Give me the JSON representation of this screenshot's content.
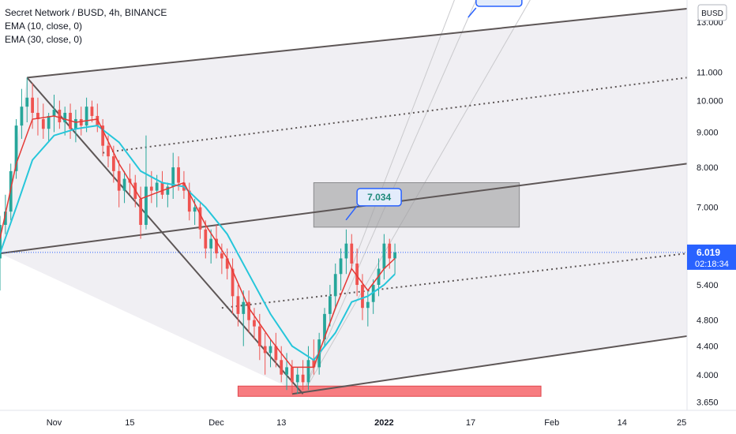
{
  "header": {
    "title": "Secret Network / BUSD, 4h, BINANCE",
    "indicators": [
      "EMA (10, close, 0)",
      "EMA (30, close, 0)"
    ]
  },
  "price_axis": {
    "currency_badge": "BUSD",
    "last_price": "6.019",
    "countdown": "02:18:34"
  },
  "annotations": {
    "target_mid": "7.034"
  },
  "colors": {
    "up": "#26a69a",
    "down": "#ef5350",
    "ema_fast": "#e53935",
    "ema_slow": "#26c6da",
    "channel": "#5d5656",
    "last_price": "#2962ff",
    "box_grey": "#9e9ea0",
    "box_red": "#f77c80"
  },
  "chart_data": {
    "type": "candlestick",
    "yscale": "log",
    "y_ticks": [
      "3.650",
      "4.000",
      "4.400",
      "4.800",
      "5.400",
      "6.000",
      "7.000",
      "8.000",
      "9.000",
      "10.000",
      "11.000",
      "13.000"
    ],
    "x_ticks": [
      "Nov",
      "15",
      "Dec",
      "13",
      "2022",
      "17",
      "Feb",
      "14",
      "25"
    ],
    "ylim": [
      3.55,
      14.0
    ],
    "xlim": [
      "2021-10-22",
      "2022-02-26"
    ],
    "series": [
      {
        "name": "EMA (10, close, 0)",
        "kind": "line"
      },
      {
        "name": "EMA (30, close, 0)",
        "kind": "line"
      }
    ],
    "candles": [
      [
        "2021-10-22",
        5.9,
        6.8,
        5.3,
        6.6
      ],
      [
        "2021-10-23",
        6.6,
        7.3,
        6.4,
        6.9
      ],
      [
        "2021-10-24",
        6.9,
        8.1,
        6.7,
        7.9
      ],
      [
        "2021-10-25",
        7.9,
        9.4,
        7.7,
        9.2
      ],
      [
        "2021-10-26",
        9.2,
        10.4,
        8.8,
        9.8
      ],
      [
        "2021-10-27",
        9.8,
        10.8,
        9.3,
        10.1
      ],
      [
        "2021-10-28",
        10.1,
        10.6,
        9.1,
        9.6
      ],
      [
        "2021-10-29",
        9.6,
        10.1,
        8.9,
        9.4
      ],
      [
        "2021-10-30",
        9.4,
        9.9,
        8.8,
        9.1
      ],
      [
        "2021-10-31",
        9.1,
        9.6,
        8.7,
        9.5
      ],
      [
        "2021-11-01",
        9.5,
        10.2,
        9.0,
        9.7
      ],
      [
        "2021-11-02",
        9.7,
        10.0,
        9.1,
        9.3
      ],
      [
        "2021-11-03",
        9.3,
        9.8,
        8.9,
        9.6
      ],
      [
        "2021-11-04",
        9.6,
        9.9,
        8.8,
        9.1
      ],
      [
        "2021-11-05",
        9.1,
        9.7,
        8.7,
        9.4
      ],
      [
        "2021-11-06",
        9.4,
        9.8,
        8.9,
        9.2
      ],
      [
        "2021-11-07",
        9.2,
        10.1,
        9.0,
        9.8
      ],
      [
        "2021-11-08",
        9.8,
        10.0,
        9.3,
        9.5
      ],
      [
        "2021-11-09",
        9.5,
        9.9,
        9.0,
        9.2
      ],
      [
        "2021-11-10",
        9.2,
        9.4,
        8.3,
        8.6
      ],
      [
        "2021-11-11",
        8.6,
        8.9,
        8.0,
        8.3
      ],
      [
        "2021-11-12",
        8.3,
        8.6,
        7.6,
        7.9
      ],
      [
        "2021-11-13",
        7.9,
        8.2,
        7.0,
        7.4
      ],
      [
        "2021-11-14",
        7.4,
        7.9,
        7.1,
        7.7
      ],
      [
        "2021-11-15",
        7.7,
        8.1,
        7.3,
        7.6
      ],
      [
        "2021-11-16",
        7.6,
        7.8,
        7.0,
        7.2
      ],
      [
        "2021-11-17",
        7.2,
        7.5,
        6.3,
        6.6
      ],
      [
        "2021-11-18",
        6.6,
        8.9,
        6.5,
        7.5
      ],
      [
        "2021-11-19",
        7.5,
        7.9,
        7.1,
        7.4
      ],
      [
        "2021-11-20",
        7.4,
        7.8,
        7.0,
        7.6
      ],
      [
        "2021-11-21",
        7.6,
        7.9,
        7.2,
        7.3
      ],
      [
        "2021-11-22",
        7.3,
        7.6,
        7.0,
        7.5
      ],
      [
        "2021-11-23",
        7.5,
        8.4,
        7.2,
        8.0
      ],
      [
        "2021-11-24",
        8.0,
        8.3,
        7.4,
        7.6
      ],
      [
        "2021-11-25",
        7.6,
        7.9,
        7.2,
        7.4
      ],
      [
        "2021-11-26",
        7.4,
        7.6,
        6.7,
        6.9
      ],
      [
        "2021-11-27",
        6.9,
        7.2,
        6.6,
        7.0
      ],
      [
        "2021-11-28",
        7.0,
        7.1,
        6.3,
        6.5
      ],
      [
        "2021-11-29",
        6.5,
        6.7,
        5.9,
        6.1
      ],
      [
        "2021-11-30",
        6.1,
        6.5,
        5.8,
        6.3
      ],
      [
        "2021-12-01",
        6.3,
        6.6,
        5.9,
        6.0
      ],
      [
        "2021-12-02",
        6.0,
        6.2,
        5.6,
        5.9
      ],
      [
        "2021-12-03",
        5.9,
        6.1,
        5.5,
        5.7
      ],
      [
        "2021-12-04",
        5.7,
        5.9,
        4.9,
        5.2
      ],
      [
        "2021-12-05",
        5.2,
        5.4,
        4.7,
        4.9
      ],
      [
        "2021-12-06",
        4.9,
        5.3,
        4.4,
        5.1
      ],
      [
        "2021-12-07",
        5.1,
        5.3,
        4.6,
        4.8
      ],
      [
        "2021-12-08",
        4.8,
        5.0,
        4.5,
        4.7
      ],
      [
        "2021-12-09",
        4.7,
        4.9,
        4.2,
        4.4
      ],
      [
        "2021-12-10",
        4.4,
        4.6,
        4.0,
        4.3
      ],
      [
        "2021-12-11",
        4.3,
        4.5,
        4.1,
        4.4
      ],
      [
        "2021-12-12",
        4.4,
        4.6,
        4.1,
        4.2
      ],
      [
        "2021-12-13",
        4.2,
        4.4,
        3.9,
        4.0
      ],
      [
        "2021-12-14",
        4.0,
        4.3,
        3.8,
        4.1
      ],
      [
        "2021-12-15",
        4.1,
        4.2,
        3.75,
        3.9
      ],
      [
        "2021-12-16",
        3.9,
        4.1,
        3.75,
        4.0
      ],
      [
        "2021-12-17",
        4.0,
        4.2,
        3.8,
        3.9
      ],
      [
        "2021-12-18",
        3.9,
        4.4,
        3.8,
        4.2
      ],
      [
        "2021-12-19",
        4.2,
        4.5,
        4.0,
        4.1
      ],
      [
        "2021-12-20",
        4.1,
        4.6,
        4.0,
        4.5
      ],
      [
        "2021-12-21",
        4.5,
        5.0,
        4.4,
        4.9
      ],
      [
        "2021-12-22",
        4.9,
        5.4,
        4.7,
        5.2
      ],
      [
        "2021-12-23",
        5.2,
        5.8,
        5.0,
        5.6
      ],
      [
        "2021-12-24",
        5.6,
        6.1,
        5.3,
        5.9
      ],
      [
        "2021-12-25",
        5.9,
        6.5,
        5.6,
        6.2
      ],
      [
        "2021-12-26",
        6.2,
        6.4,
        5.7,
        5.8
      ],
      [
        "2021-12-27",
        5.8,
        6.1,
        5.2,
        5.4
      ],
      [
        "2021-12-28",
        5.4,
        5.6,
        4.8,
        5.0
      ],
      [
        "2021-12-29",
        5.0,
        5.3,
        4.7,
        5.1
      ],
      [
        "2021-12-30",
        5.1,
        5.5,
        4.9,
        5.4
      ],
      [
        "2021-12-31",
        5.4,
        5.9,
        5.2,
        5.7
      ],
      [
        "2022-01-01",
        5.7,
        6.4,
        5.5,
        6.2
      ],
      [
        "2022-01-02",
        6.2,
        6.3,
        5.7,
        5.9
      ],
      [
        "2022-01-03",
        5.9,
        6.2,
        5.6,
        6.019
      ]
    ],
    "ema_fast": [
      [
        "2021-10-22",
        6.3
      ],
      [
        "2021-10-25",
        8.1
      ],
      [
        "2021-10-28",
        9.4
      ],
      [
        "2021-11-01",
        9.5
      ],
      [
        "2021-11-05",
        9.3
      ],
      [
        "2021-11-09",
        9.4
      ],
      [
        "2021-11-13",
        8.1
      ],
      [
        "2021-11-17",
        7.2
      ],
      [
        "2021-11-21",
        7.4
      ],
      [
        "2021-11-25",
        7.6
      ],
      [
        "2021-11-29",
        6.6
      ],
      [
        "2021-12-03",
        5.9
      ],
      [
        "2021-12-07",
        5.0
      ],
      [
        "2021-12-11",
        4.5
      ],
      [
        "2021-12-15",
        4.1
      ],
      [
        "2021-12-19",
        4.1
      ],
      [
        "2021-12-23",
        5.0
      ],
      [
        "2021-12-26",
        5.7
      ],
      [
        "2021-12-29",
        5.3
      ],
      [
        "2022-01-01",
        5.7
      ],
      [
        "2022-01-03",
        5.9
      ]
    ],
    "ema_slow": [
      [
        "2021-10-22",
        6.0
      ],
      [
        "2021-10-25",
        7.0
      ],
      [
        "2021-10-28",
        8.2
      ],
      [
        "2021-11-01",
        8.9
      ],
      [
        "2021-11-05",
        9.1
      ],
      [
        "2021-11-09",
        9.2
      ],
      [
        "2021-11-13",
        8.7
      ],
      [
        "2021-11-17",
        7.9
      ],
      [
        "2021-11-21",
        7.6
      ],
      [
        "2021-11-25",
        7.5
      ],
      [
        "2021-11-29",
        7.0
      ],
      [
        "2021-12-03",
        6.4
      ],
      [
        "2021-12-07",
        5.6
      ],
      [
        "2021-12-11",
        4.9
      ],
      [
        "2021-12-15",
        4.4
      ],
      [
        "2021-12-19",
        4.2
      ],
      [
        "2021-12-23",
        4.6
      ],
      [
        "2021-12-26",
        5.1
      ],
      [
        "2021-12-29",
        5.2
      ],
      [
        "2022-01-01",
        5.4
      ],
      [
        "2022-01-03",
        5.6
      ]
    ],
    "last_price_line": 6.019,
    "pitchfork": {
      "median_from": [
        "2021-10-22",
        6.0
      ],
      "median_to": [
        "2022-02-26",
        8.1
      ],
      "upper_from": [
        "2021-10-27",
        10.8
      ],
      "upper_to": [
        "2022-02-26",
        13.6
      ],
      "lower_from": [
        "2021-12-15",
        3.75
      ],
      "lower_to": [
        "2022-02-26",
        4.55
      ],
      "inner_upper_from": [
        "2021-11-10",
        8.4
      ],
      "inner_upper_to": [
        "2022-02-26",
        10.8
      ],
      "inner_lower_from": [
        "2021-12-02",
        5.0
      ],
      "inner_lower_to": [
        "2022-02-26",
        6.0
      ],
      "downtrend_from": [
        "2021-10-27",
        10.8
      ],
      "downtrend_to": [
        "2021-12-17",
        3.75
      ]
    },
    "zones": [
      {
        "from": "2021-12-19",
        "to": "2022-01-26",
        "low": 6.55,
        "high": 7.6,
        "color": "grey"
      },
      {
        "from": "2021-12-05",
        "to": "2022-01-30",
        "low": 3.72,
        "high": 3.85,
        "color": "red"
      }
    ],
    "target_mid_value": 7.034
  }
}
